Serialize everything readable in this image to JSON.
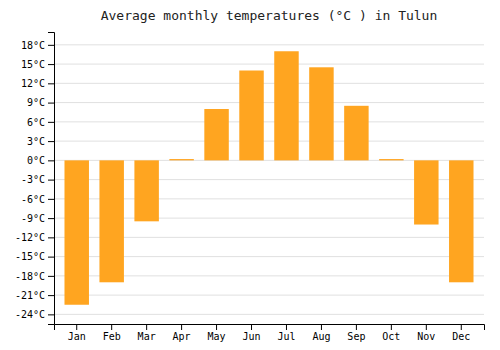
{
  "chart_data": {
    "type": "bar",
    "title": "Average monthly temperatures (°C ) in Tulun",
    "categories": [
      "Jan",
      "Feb",
      "Mar",
      "Apr",
      "May",
      "Jun",
      "Jul",
      "Aug",
      "Sep",
      "Oct",
      "Nov",
      "Dec"
    ],
    "values": [
      -22.5,
      -19.0,
      -9.5,
      0.2,
      8.0,
      14.0,
      17.0,
      14.5,
      8.5,
      0.2,
      -10.0,
      -19.0
    ],
    "color": "#FFA520",
    "ylim": [
      -25.5,
      20.0
    ],
    "yticks": [
      {
        "value": -24,
        "label": "-24°C"
      },
      {
        "value": -21,
        "label": "-21°C"
      },
      {
        "value": -18,
        "label": "-18°C"
      },
      {
        "value": -15,
        "label": "-15°C"
      },
      {
        "value": -12,
        "label": "-12°C"
      },
      {
        "value": -9,
        "label": "-9°C"
      },
      {
        "value": -6,
        "label": "-6°C"
      },
      {
        "value": -3,
        "label": "-3°C"
      },
      {
        "value": 0,
        "label": "0°C"
      },
      {
        "value": 3,
        "label": "3°C"
      },
      {
        "value": 6,
        "label": "6°C"
      },
      {
        "value": 9,
        "label": "9°C"
      },
      {
        "value": 12,
        "label": "12°C"
      },
      {
        "value": 15,
        "label": "15°C"
      },
      {
        "value": 18,
        "label": "18°C"
      }
    ],
    "grid": true
  }
}
